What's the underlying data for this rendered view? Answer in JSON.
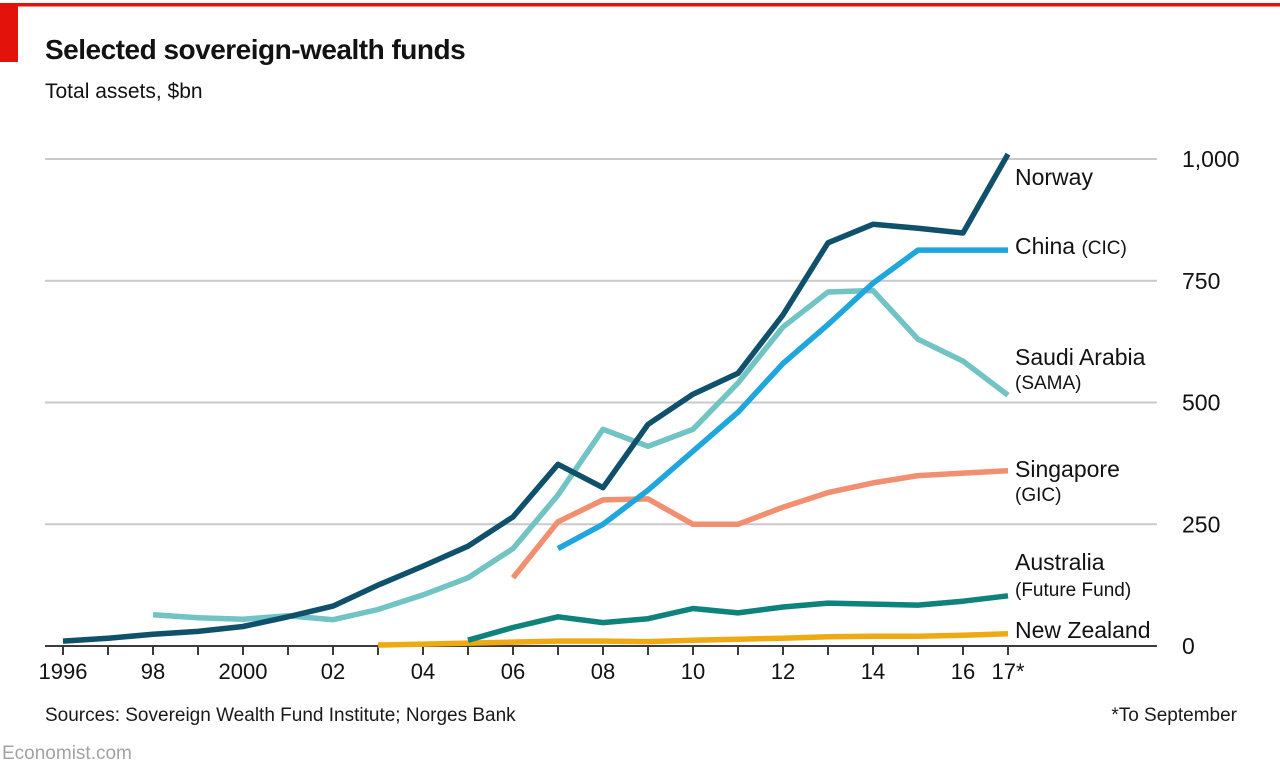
{
  "header": {
    "title": "Selected sovereign-wealth funds",
    "subtitle": "Total assets, $bn"
  },
  "footer": {
    "sources": "Sources: Sovereign Wealth Fund Institute; Norges Bank",
    "note": "*To September",
    "site": "Economist.com"
  },
  "colors": {
    "accent_red": "#e3120b",
    "gridline": "#c9c9c9",
    "axis": "#3b3b3b",
    "text": "#121212",
    "footer_muted": "#a3a3a3",
    "background": "#ffffff"
  },
  "chart_data": {
    "type": "line",
    "title": "Selected sovereign-wealth funds",
    "subtitle": "Total assets, $bn",
    "unit": "$bn",
    "grid": "horizontal",
    "legend_position": "right-line-annotations",
    "x_range": [
      1996,
      2017
    ],
    "ylim": [
      0,
      1000
    ],
    "yticks": [
      {
        "value": 0,
        "label": "0"
      },
      {
        "value": 250,
        "label": "250"
      },
      {
        "value": 500,
        "label": "500"
      },
      {
        "value": 750,
        "label": "750"
      },
      {
        "value": 1000,
        "label": "1,000"
      }
    ],
    "xticks": [
      {
        "year": 1996,
        "label": "1996"
      },
      {
        "year": 1998,
        "label": "98"
      },
      {
        "year": 2000,
        "label": "2000"
      },
      {
        "year": 2002,
        "label": "02"
      },
      {
        "year": 2004,
        "label": "04"
      },
      {
        "year": 2006,
        "label": "06"
      },
      {
        "year": 2008,
        "label": "08"
      },
      {
        "year": 2010,
        "label": "10"
      },
      {
        "year": 2012,
        "label": "12"
      },
      {
        "year": 2014,
        "label": "14"
      },
      {
        "year": 2016,
        "label": "16"
      },
      {
        "year": 2017,
        "label": "17*"
      }
    ],
    "footnote": "*To September",
    "series": [
      {
        "name": "Singapore (GIC)",
        "label": "Singapore",
        "label_paren": "(GIC)",
        "paren_inline": false,
        "color": "#f28f70",
        "start_year": 2006,
        "values": [
          140,
          255,
          300,
          302,
          250,
          250,
          285,
          315,
          335,
          350,
          355,
          360
        ]
      },
      {
        "name": "Saudi Arabia (SAMA)",
        "label": "Saudi Arabia",
        "label_paren": "(SAMA)",
        "paren_inline": false,
        "color": "#72c3c4",
        "start_year": 1998,
        "values": [
          64,
          58,
          55,
          62,
          54,
          75,
          105,
          140,
          200,
          310,
          445,
          410,
          445,
          540,
          655,
          727,
          730,
          630,
          585,
          515
        ]
      },
      {
        "name": "New Zealand",
        "label": "New Zealand",
        "label_paren": null,
        "paren_inline": false,
        "color": "#efa912",
        "start_year": 2003,
        "values": [
          2,
          4,
          6,
          8,
          10,
          10,
          9,
          12,
          14,
          16,
          19,
          20,
          20,
          22,
          25
        ]
      },
      {
        "name": "Australia (Future Fund)",
        "label": "Australia",
        "label_paren": "(Future Fund)",
        "paren_inline": false,
        "color": "#0e837b",
        "start_year": 2005,
        "values": [
          12,
          38,
          60,
          48,
          56,
          77,
          68,
          80,
          88,
          86,
          84,
          92,
          103
        ]
      },
      {
        "name": "Norway",
        "label": "Norway",
        "label_paren": null,
        "paren_inline": false,
        "color": "#0f506b",
        "start_year": 1996,
        "values": [
          10,
          16,
          24,
          30,
          40,
          60,
          82,
          125,
          164,
          205,
          265,
          373,
          325,
          455,
          517,
          560,
          680,
          828,
          866,
          858,
          848,
          1010
        ]
      },
      {
        "name": "China (CIC)",
        "label": "China",
        "label_paren": "(CIC)",
        "paren_inline": true,
        "color": "#1fa6dd",
        "start_year": 2007,
        "values": [
          200,
          250,
          320,
          400,
          480,
          580,
          660,
          745,
          813,
          813,
          813
        ]
      }
    ]
  }
}
